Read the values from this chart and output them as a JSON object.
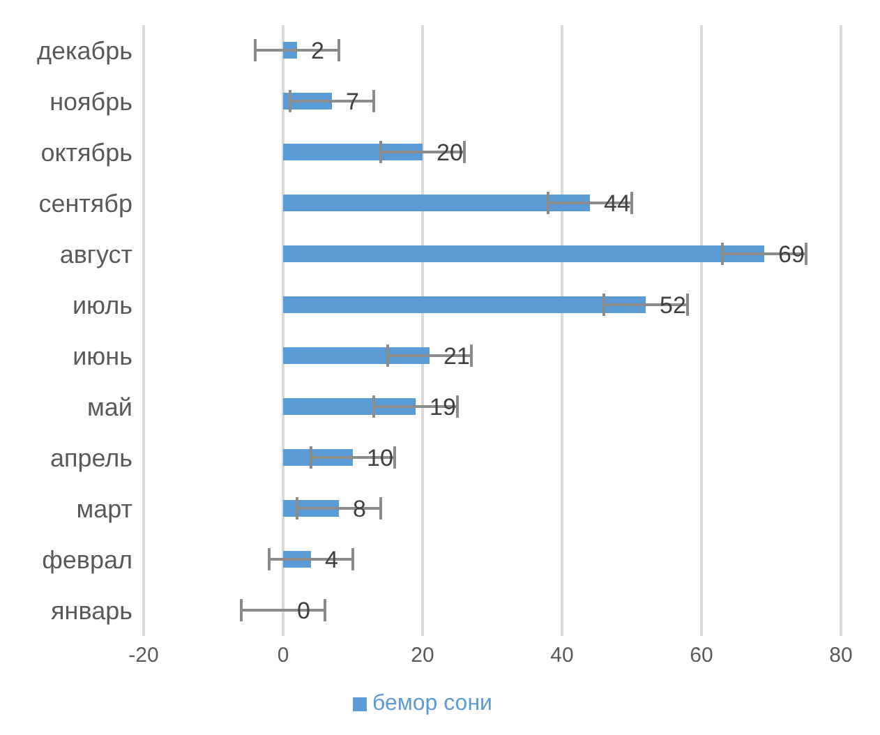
{
  "chart_data": {
    "type": "bar",
    "orientation": "horizontal",
    "categories": [
      "декабрь",
      "ноябрь",
      "октябрь",
      "сентябр",
      "август",
      "июль",
      "июнь",
      "май",
      "апрель",
      "март",
      "феврал",
      "январь"
    ],
    "series": [
      {
        "name": "бемор сони",
        "color": "#5b9bd5",
        "values": [
          2,
          7,
          20,
          44,
          69,
          52,
          21,
          19,
          10,
          8,
          4,
          0
        ],
        "errors": [
          6,
          6,
          6,
          6,
          6,
          6,
          6,
          6,
          6,
          6,
          6,
          6
        ]
      }
    ],
    "xlim": [
      -20,
      80
    ],
    "xticks": [
      -20,
      0,
      20,
      40,
      60,
      80
    ],
    "grid": "x",
    "data_labels": true,
    "legend": "bottom"
  }
}
